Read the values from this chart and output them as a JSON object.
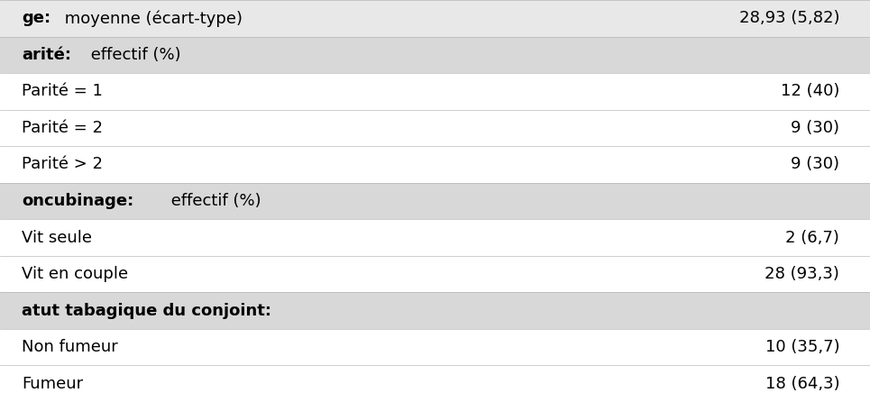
{
  "rows": [
    {
      "label_bold": "ge:",
      "label_regular": " moyenne (écart-type)",
      "value": "28,93 (5,82)",
      "bg": "#e8e8e8"
    },
    {
      "label_bold": "arité:",
      "label_regular": " effectif (%)",
      "value": "",
      "bg": "#d8d8d8"
    },
    {
      "label_bold": "",
      "label_regular": "Parité = 1",
      "value": "12 (40)",
      "bg": "#ffffff"
    },
    {
      "label_bold": "",
      "label_regular": "Parité = 2",
      "value": "9 (30)",
      "bg": "#ffffff"
    },
    {
      "label_bold": "",
      "label_regular": "Parité > 2",
      "value": "9 (30)",
      "bg": "#ffffff"
    },
    {
      "label_bold": "oncubinage:",
      "label_regular": " effectif (%)",
      "value": "",
      "bg": "#d8d8d8"
    },
    {
      "label_bold": "",
      "label_regular": "Vit seule",
      "value": "2 (6,7)",
      "bg": "#ffffff"
    },
    {
      "label_bold": "",
      "label_regular": "Vit en couple",
      "value": "28 (93,3)",
      "bg": "#ffffff"
    },
    {
      "label_bold": "atut tabagique du conjoint:",
      "label_regular": "",
      "value": "",
      "bg": "#d8d8d8"
    },
    {
      "label_bold": "",
      "label_regular": "Non fumeur",
      "value": "10 (35,7)",
      "bg": "#ffffff"
    },
    {
      "label_bold": "",
      "label_regular": "Fumeur",
      "value": "18 (64,3)",
      "bg": "#ffffff"
    }
  ],
  "text_color": "#000000",
  "font_size": 13,
  "fig_width": 9.65,
  "fig_height": 4.46
}
